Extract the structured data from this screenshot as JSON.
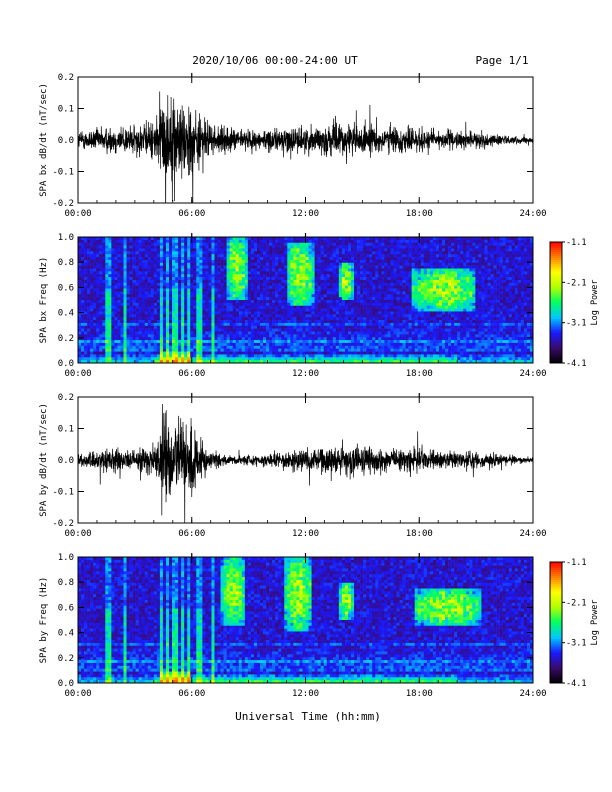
{
  "header": {
    "date_range": "2020/10/06  00:00-24:00 UT",
    "page": "Page 1/1"
  },
  "xlabel": "Universal Time (hh:mm)",
  "colors": {
    "waveform": "#000000",
    "colormap": [
      "#000000",
      "#3a0a6e",
      "#1a1aff",
      "#00c8ff",
      "#00ff60",
      "#b0ff00",
      "#ffff00",
      "#ff8000",
      "#ff0000"
    ]
  },
  "chart_data": [
    {
      "type": "line",
      "name": "bx_waveform",
      "ylabel": "SPA bx dB/dt (nT/sec)",
      "xlim": [
        0,
        24
      ],
      "ylim": [
        -0.2,
        0.2
      ],
      "x_ticks": [
        "00:00",
        "06:00",
        "12:00",
        "18:00",
        "24:00"
      ],
      "y_ticks": [
        "0.2",
        "0.1",
        "0.0",
        "-0.1",
        "-0.2"
      ],
      "envelope_hours": [
        0,
        1,
        2,
        3,
        4,
        4.5,
        5,
        6,
        7,
        8,
        9,
        10,
        11,
        12,
        13,
        14,
        15,
        16,
        17,
        18,
        19,
        20,
        21,
        22,
        23,
        24
      ],
      "envelope_amplitude": [
        0.06,
        0.08,
        0.1,
        0.1,
        0.13,
        0.3,
        0.3,
        0.25,
        0.1,
        0.08,
        0.07,
        0.07,
        0.09,
        0.09,
        0.1,
        0.12,
        0.1,
        0.09,
        0.09,
        0.08,
        0.07,
        0.06,
        0.05,
        0.04,
        0.025,
        0.02
      ]
    },
    {
      "type": "heatmap",
      "name": "bx_spectrogram",
      "ylabel": "SPA bx Freq (Hz)",
      "xlim": [
        0,
        24
      ],
      "ylim": [
        0,
        1.0
      ],
      "x_ticks": [
        "00:00",
        "06:00",
        "12:00",
        "18:00",
        "24:00"
      ],
      "y_ticks": [
        "1.0",
        "0.8",
        "0.6",
        "0.4",
        "0.2",
        "0.0"
      ],
      "colorbar_label": "Log Power",
      "colorbar_ticks": [
        "-1.1",
        "-2.1",
        "-3.1",
        "-4.1"
      ],
      "colorbar_range": [
        -4.1,
        -1.1
      ],
      "bursts": [
        {
          "t0": 7.9,
          "t1": 8.9,
          "f0": 0.5,
          "f1": 1.0
        },
        {
          "t0": 11.0,
          "t1": 12.4,
          "f0": 0.45,
          "f1": 0.95
        },
        {
          "t0": 13.8,
          "t1": 14.5,
          "f0": 0.5,
          "f1": 0.8
        },
        {
          "t0": 17.6,
          "t1": 21.0,
          "f0": 0.42,
          "f1": 0.75
        }
      ]
    },
    {
      "type": "line",
      "name": "by_waveform",
      "ylabel": "SPA by dB/dt (nT/sec)",
      "xlim": [
        0,
        24
      ],
      "ylim": [
        -0.2,
        0.2
      ],
      "x_ticks": [
        "00:00",
        "06:00",
        "12:00",
        "18:00",
        "24:00"
      ],
      "y_ticks": [
        "0.2",
        "0.1",
        "0.0",
        "-0.1",
        "-0.2"
      ],
      "envelope_hours": [
        0,
        1,
        2,
        3,
        4,
        4.5,
        5,
        6,
        7,
        8,
        9,
        10,
        11,
        12,
        13,
        14,
        15,
        16,
        17,
        18,
        19,
        20,
        21,
        22,
        23,
        24
      ],
      "envelope_amplitude": [
        0.04,
        0.06,
        0.08,
        0.06,
        0.1,
        0.3,
        0.3,
        0.22,
        0.06,
        0.03,
        0.035,
        0.04,
        0.06,
        0.08,
        0.09,
        0.1,
        0.09,
        0.08,
        0.08,
        0.08,
        0.06,
        0.06,
        0.05,
        0.04,
        0.03,
        0.02
      ]
    },
    {
      "type": "heatmap",
      "name": "by_spectrogram",
      "ylabel": "SPA by Freq (Hz)",
      "xlim": [
        0,
        24
      ],
      "ylim": [
        0,
        1.0
      ],
      "x_ticks": [
        "00:00",
        "06:00",
        "12:00",
        "18:00",
        "24:00"
      ],
      "y_ticks": [
        "1.0",
        "0.8",
        "0.6",
        "0.4",
        "0.2",
        "0.0"
      ],
      "colorbar_label": "Log Power",
      "colorbar_ticks": [
        "-1.1",
        "-2.1",
        "-3.1",
        "-4.1"
      ],
      "colorbar_range": [
        -4.1,
        -1.1
      ],
      "bursts": [
        {
          "t0": 7.6,
          "t1": 8.8,
          "f0": 0.45,
          "f1": 1.0
        },
        {
          "t0": 10.9,
          "t1": 12.3,
          "f0": 0.42,
          "f1": 1.0
        },
        {
          "t0": 13.8,
          "t1": 14.5,
          "f0": 0.5,
          "f1": 0.8
        },
        {
          "t0": 17.8,
          "t1": 21.2,
          "f0": 0.45,
          "f1": 0.75
        }
      ]
    }
  ]
}
